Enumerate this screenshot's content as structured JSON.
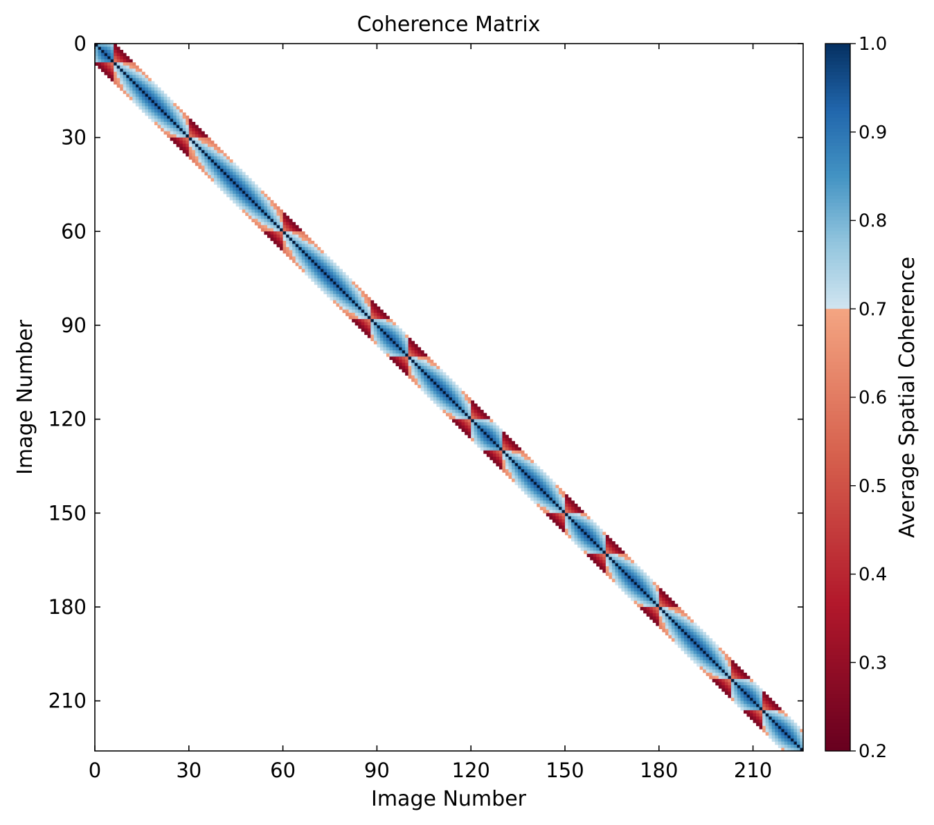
{
  "chart_data": {
    "type": "heatmap",
    "title": "Coherence Matrix",
    "xlabel": "Image Number",
    "ylabel": "Image Number",
    "colorbar_label": "Average Spatial Coherence",
    "n_images": 226,
    "xlim": [
      0,
      226
    ],
    "ylim": [
      226,
      0
    ],
    "x_ticks": [
      0,
      30,
      60,
      90,
      120,
      150,
      180,
      210
    ],
    "y_ticks": [
      0,
      30,
      60,
      90,
      120,
      150,
      180,
      210
    ],
    "colorbar_ticks": [
      0.2,
      0.3,
      0.4,
      0.5,
      0.6,
      0.7,
      0.8,
      0.9,
      1.0
    ],
    "colorbar_range": [
      0.2,
      1.0
    ],
    "colorbar_split": 0.7,
    "band_halfwidth": 6,
    "diagonal_value": 1.0,
    "segment_starts": [
      0,
      6,
      30,
      60,
      88,
      100,
      120,
      130,
      150,
      163,
      180,
      203,
      213,
      226
    ],
    "colormap_low": [
      "#67001f",
      "#b2182b",
      "#d6604d",
      "#f4a582"
    ],
    "colormap_high": [
      "#d1e5f0",
      "#92c5de",
      "#4393c3",
      "#2166ac",
      "#053061"
    ],
    "background": "#ffffff",
    "diagonal_color": "#0a1020"
  }
}
